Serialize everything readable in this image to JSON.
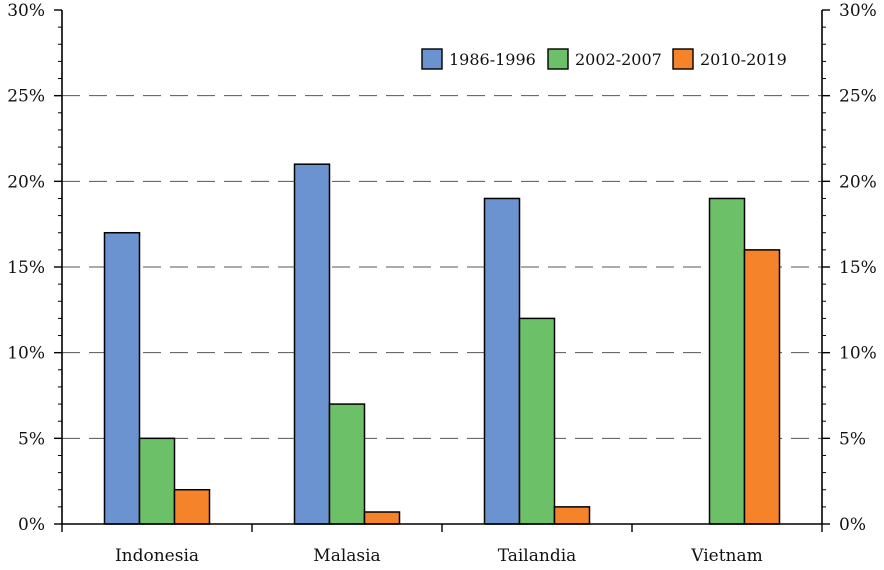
{
  "chart_data": {
    "type": "bar",
    "title": "",
    "xlabel": "",
    "ylabel": "",
    "categories": [
      "Indonesia",
      "Malasia",
      "Tailandia",
      "Vietnam"
    ],
    "series": [
      {
        "name": "1986-1996",
        "color": "#6b93cf",
        "values": [
          17,
          21,
          19,
          null
        ]
      },
      {
        "name": "2002-2007",
        "color": "#6cc067",
        "values": [
          5,
          7,
          12,
          19
        ]
      },
      {
        "name": "2010-2019",
        "color": "#f5832a",
        "values": [
          2,
          0.7,
          1,
          16
        ]
      }
    ],
    "ylim": [
      0,
      30
    ],
    "yticks": [
      0,
      5,
      10,
      15,
      20,
      25,
      30
    ],
    "ytick_labels": [
      "0%",
      "5%",
      "10%",
      "15%",
      "20%",
      "25%",
      "30%"
    ],
    "grid": "horizontal dashed",
    "legend_position": "top-right",
    "y_axis_mirrored_right": true
  }
}
